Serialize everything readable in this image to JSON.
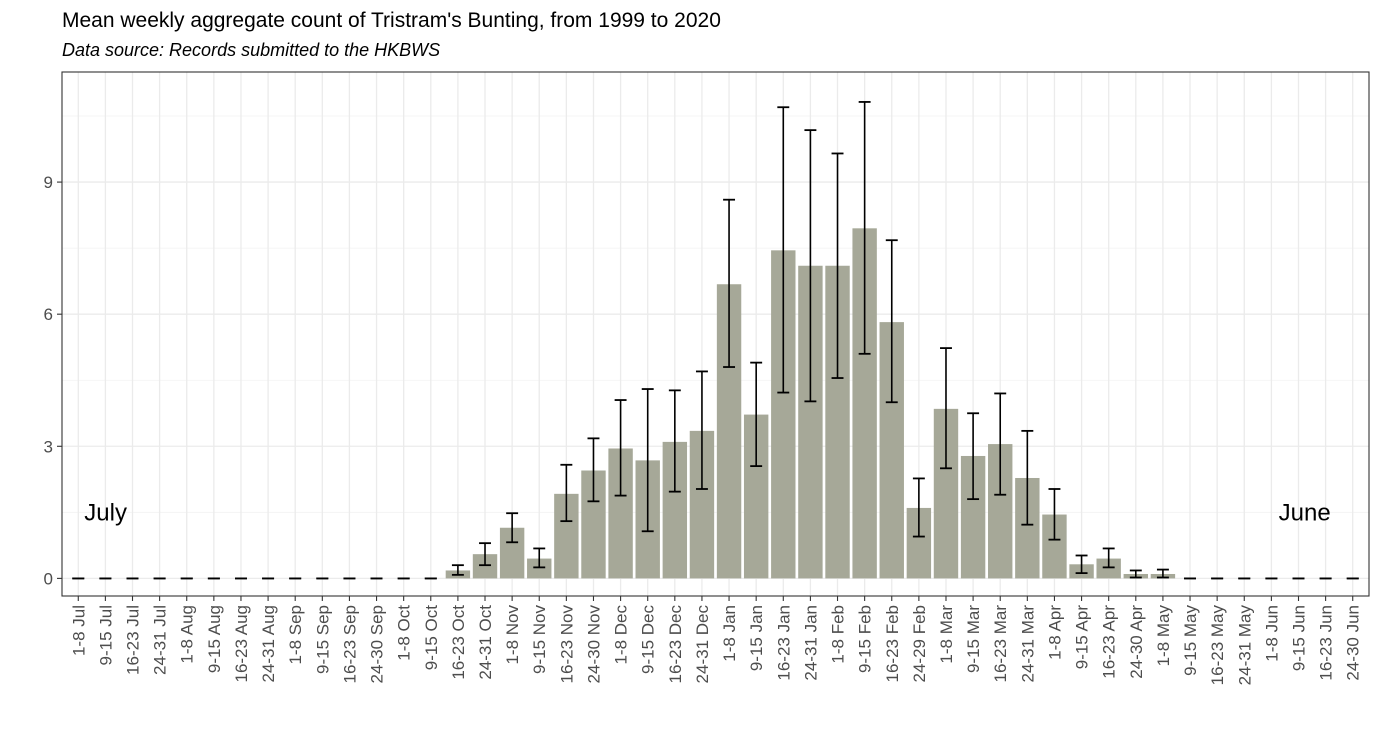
{
  "chart_data": {
    "type": "bar",
    "title": "Mean weekly aggregate count of Tristram's Bunting, from 1999 to 2020",
    "subtitle": "Data source: Records submitted to the HKBWS",
    "xlabel": "",
    "ylabel": "",
    "ylim": [
      -0.4,
      11.5
    ],
    "yticks": [
      0,
      3,
      6,
      9
    ],
    "grid": true,
    "bar_color": "#a6a898",
    "error_color": "#000000",
    "annotations": [
      {
        "text": "July",
        "category": "1-8 Jul",
        "y": 1.5,
        "align": "start"
      },
      {
        "text": "June",
        "category": "24-30 Jun",
        "y": 1.5,
        "align": "end"
      }
    ],
    "categories": [
      "1-8 Jul",
      "9-15 Jul",
      "16-23 Jul",
      "24-31 Jul",
      "1-8 Aug",
      "9-15 Aug",
      "16-23 Aug",
      "24-31 Aug",
      "1-8 Sep",
      "9-15 Sep",
      "16-23 Sep",
      "24-30 Sep",
      "1-8 Oct",
      "9-15 Oct",
      "16-23 Oct",
      "24-31 Oct",
      "1-8 Nov",
      "9-15 Nov",
      "16-23 Nov",
      "24-30 Nov",
      "1-8 Dec",
      "9-15 Dec",
      "16-23 Dec",
      "24-31 Dec",
      "1-8 Jan",
      "9-15 Jan",
      "16-23 Jan",
      "24-31 Jan",
      "1-8 Feb",
      "9-15 Feb",
      "16-23 Feb",
      "24-29 Feb",
      "1-8 Mar",
      "9-15 Mar",
      "16-23 Mar",
      "24-31 Mar",
      "1-8 Apr",
      "9-15 Apr",
      "16-23 Apr",
      "24-30 Apr",
      "1-8 May",
      "9-15 May",
      "16-23 May",
      "24-31 May",
      "1-8 Jun",
      "9-15 Jun",
      "16-23 Jun",
      "24-30 Jun"
    ],
    "values": [
      0,
      0,
      0,
      0,
      0,
      0,
      0,
      0,
      0,
      0,
      0,
      0,
      0,
      0,
      0.18,
      0.55,
      1.15,
      0.45,
      1.92,
      2.45,
      2.95,
      2.68,
      3.1,
      3.35,
      6.68,
      3.72,
      7.45,
      7.1,
      7.1,
      7.95,
      5.82,
      1.6,
      3.85,
      2.78,
      3.05,
      2.28,
      1.45,
      0.32,
      0.45,
      0.1,
      0.1,
      0,
      0,
      0,
      0,
      0,
      0,
      0
    ],
    "error_low": [
      0,
      0,
      0,
      0,
      0,
      0,
      0,
      0,
      0,
      0,
      0,
      0,
      0,
      0,
      0.08,
      0.3,
      0.82,
      0.25,
      1.3,
      1.75,
      1.88,
      1.07,
      1.97,
      2.03,
      4.8,
      2.55,
      4.22,
      4.02,
      4.55,
      5.1,
      4.0,
      0.95,
      2.5,
      1.8,
      1.9,
      1.22,
      0.88,
      0.12,
      0.25,
      0.02,
      0.02,
      0,
      0,
      0,
      0,
      0,
      0,
      0
    ],
    "error_high": [
      0,
      0,
      0,
      0,
      0,
      0,
      0,
      0,
      0,
      0,
      0,
      0,
      0,
      0,
      0.3,
      0.8,
      1.48,
      0.68,
      2.58,
      3.18,
      4.05,
      4.3,
      4.27,
      4.7,
      8.6,
      4.9,
      10.7,
      10.18,
      9.65,
      10.82,
      7.68,
      2.27,
      5.23,
      3.75,
      4.2,
      3.35,
      2.03,
      0.52,
      0.68,
      0.18,
      0.2,
      0,
      0,
      0,
      0,
      0,
      0,
      0
    ]
  }
}
